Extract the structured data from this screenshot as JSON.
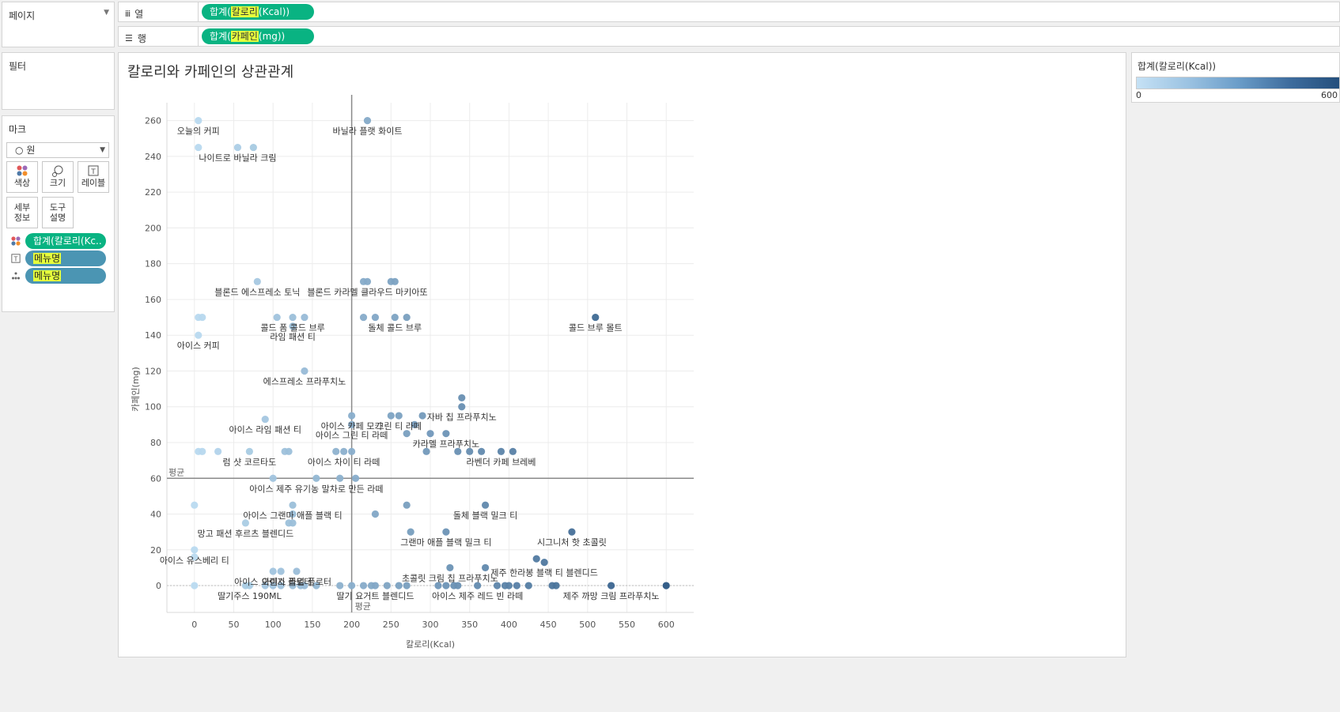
{
  "shelves": {
    "pages_label": "페이지",
    "columns_label": "열",
    "rows_label": "행",
    "columns_pill": {
      "pre": "합계(",
      "hl": "칼로리",
      "post": "(Kcal))"
    },
    "rows_pill": {
      "pre": "합계(",
      "hl": "카페인",
      "post": "(mg))"
    }
  },
  "filters": {
    "title": "필터"
  },
  "marks": {
    "title": "마크",
    "type_value": "원",
    "buttons": [
      {
        "label": "색상",
        "icon": "color-icon"
      },
      {
        "label": "크기",
        "icon": "size-icon"
      },
      {
        "label": "레이블",
        "icon": "label-icon"
      },
      {
        "label_line1": "세부",
        "label_line2": "정보",
        "icon": "detail-icon"
      },
      {
        "label_line1": "도구",
        "label_line2": "설명",
        "icon": "tooltip-icon"
      }
    ],
    "fields": [
      {
        "text": "합계(칼로리(Kc..",
        "icon": "color-icon",
        "style": "green"
      },
      {
        "text": "메뉴명",
        "icon": "label-icon",
        "style": "blue"
      },
      {
        "text": "메뉴명",
        "icon": "detail-icon",
        "style": "blue"
      }
    ]
  },
  "legend": {
    "title": "합계(칼로리(Kcal))",
    "min": "0",
    "max": "600"
  },
  "colors": {
    "green": "#09b382",
    "blue": "#4b95b3",
    "highlight": "#e6ff3c",
    "ref_line": "#8a8a8a"
  },
  "chart_data": {
    "type": "scatter",
    "title": "칼로리와 카페인의 상관관계",
    "xlabel": "칼로리(Kcal)",
    "ylabel": "카페인(mg)",
    "xlim": [
      -35,
      635
    ],
    "ylim": [
      -15,
      270
    ],
    "xticks": [
      0,
      50,
      100,
      150,
      200,
      250,
      300,
      350,
      400,
      450,
      500,
      550,
      600
    ],
    "yticks": [
      0,
      20,
      40,
      60,
      80,
      100,
      120,
      140,
      160,
      180,
      200,
      220,
      240,
      260
    ],
    "grid": true,
    "color_scale": {
      "min": 0,
      "max": 600,
      "from": "#b9daf0",
      "to": "#2a5683"
    },
    "reference_lines": [
      {
        "axis": "x",
        "value": 200,
        "label": "평균"
      },
      {
        "axis": "y",
        "value": 60,
        "label": "평균"
      }
    ],
    "points": [
      {
        "x": 5,
        "y": 260,
        "label": "오늘의 커피"
      },
      {
        "x": 5,
        "y": 245
      },
      {
        "x": 55,
        "y": 245,
        "label": "나이트로 바닐라 크림"
      },
      {
        "x": 75,
        "y": 245
      },
      {
        "x": 220,
        "y": 260,
        "label": "바닐라 플랫 화이트"
      },
      {
        "x": 80,
        "y": 170,
        "label": "블론드 에스프레소 토닉"
      },
      {
        "x": 215,
        "y": 170
      },
      {
        "x": 220,
        "y": 170,
        "label": "블론드 카라멜 클라우드 마키아또"
      },
      {
        "x": 250,
        "y": 170
      },
      {
        "x": 255,
        "y": 170
      },
      {
        "x": 5,
        "y": 150
      },
      {
        "x": 10,
        "y": 150
      },
      {
        "x": 105,
        "y": 150
      },
      {
        "x": 125,
        "y": 150,
        "label": "콜드 폼 콜드 브루"
      },
      {
        "x": 140,
        "y": 150
      },
      {
        "x": 125,
        "y": 145,
        "label": "라임 패션 티"
      },
      {
        "x": 215,
        "y": 150
      },
      {
        "x": 230,
        "y": 150
      },
      {
        "x": 255,
        "y": 150,
        "label": "돌체 콜드 브루"
      },
      {
        "x": 270,
        "y": 150
      },
      {
        "x": 510,
        "y": 150,
        "label": "콜드 브루 몰트"
      },
      {
        "x": 5,
        "y": 140,
        "label": "아이스 커피"
      },
      {
        "x": 140,
        "y": 120,
        "label": "에스프레소 프라푸치노"
      },
      {
        "x": 340,
        "y": 105
      },
      {
        "x": 340,
        "y": 100,
        "label": "자바 칩 프라푸치노"
      },
      {
        "x": 200,
        "y": 95,
        "label": "아이스 카페 모카"
      },
      {
        "x": 250,
        "y": 95
      },
      {
        "x": 260,
        "y": 95,
        "label": "그린 티 라떼"
      },
      {
        "x": 290,
        "y": 95
      },
      {
        "x": 90,
        "y": 93,
        "label": "아이스 라임 패션 티"
      },
      {
        "x": 280,
        "y": 90
      },
      {
        "x": 270,
        "y": 85
      },
      {
        "x": 300,
        "y": 85
      },
      {
        "x": 320,
        "y": 85,
        "label": "카라멜 프라푸치노"
      },
      {
        "x": 200,
        "y": 90,
        "label": "아이스 그린 티 라떼"
      },
      {
        "x": 5,
        "y": 75
      },
      {
        "x": 10,
        "y": 75
      },
      {
        "x": 30,
        "y": 75
      },
      {
        "x": 70,
        "y": 75,
        "label": "럼 샷 코르타도"
      },
      {
        "x": 115,
        "y": 75
      },
      {
        "x": 120,
        "y": 75
      },
      {
        "x": 180,
        "y": 75
      },
      {
        "x": 190,
        "y": 75,
        "label": "아이스 차이 티 라떼"
      },
      {
        "x": 200,
        "y": 75
      },
      {
        "x": 295,
        "y": 75
      },
      {
        "x": 335,
        "y": 75
      },
      {
        "x": 350,
        "y": 75
      },
      {
        "x": 365,
        "y": 75
      },
      {
        "x": 390,
        "y": 75,
        "label": "라벤더 카페 브레베"
      },
      {
        "x": 405,
        "y": 75
      },
      {
        "x": 100,
        "y": 60
      },
      {
        "x": 155,
        "y": 60,
        "label": "아이스 제주 유기농 말차로 만든 라떼"
      },
      {
        "x": 185,
        "y": 60
      },
      {
        "x": 205,
        "y": 60
      },
      {
        "x": 0,
        "y": 45
      },
      {
        "x": 125,
        "y": 45,
        "label": "아이스 그랜마 애플 블랙 티"
      },
      {
        "x": 270,
        "y": 45
      },
      {
        "x": 370,
        "y": 45,
        "label": "돌체 블랙 밀크 티"
      },
      {
        "x": 125,
        "y": 40
      },
      {
        "x": 230,
        "y": 40
      },
      {
        "x": 65,
        "y": 35,
        "label": "망고 패션 후르츠 블렌디드"
      },
      {
        "x": 120,
        "y": 35
      },
      {
        "x": 125,
        "y": 35
      },
      {
        "x": 275,
        "y": 30
      },
      {
        "x": 320,
        "y": 30,
        "label": "그랜마 애플 블랙 밀크 티"
      },
      {
        "x": 480,
        "y": 30,
        "label": "시그니처 핫 초콜릿"
      },
      {
        "x": 0,
        "y": 20,
        "label": "아이스 유스베리 티"
      },
      {
        "x": 0,
        "y": 16
      },
      {
        "x": 435,
        "y": 15
      },
      {
        "x": 445,
        "y": 13,
        "label": "제주 한라봉 블랙 티 블렌디드"
      },
      {
        "x": 325,
        "y": 10,
        "label": "초콜릿 크림 칩 프라푸치노"
      },
      {
        "x": 370,
        "y": 10
      },
      {
        "x": 100,
        "y": 8,
        "label": "아이스 오렌지 플로터"
      },
      {
        "x": 110,
        "y": 8
      },
      {
        "x": 130,
        "y": 8,
        "label": "아이스 라임 플로터"
      },
      {
        "x": 0,
        "y": 0
      },
      {
        "x": 65,
        "y": 0
      },
      {
        "x": 70,
        "y": 0,
        "label": "딸기주스 190ML"
      },
      {
        "x": 90,
        "y": 0
      },
      {
        "x": 100,
        "y": 0
      },
      {
        "x": 110,
        "y": 0
      },
      {
        "x": 125,
        "y": 0
      },
      {
        "x": 135,
        "y": 0
      },
      {
        "x": 140,
        "y": 0
      },
      {
        "x": 155,
        "y": 0
      },
      {
        "x": 185,
        "y": 0
      },
      {
        "x": 200,
        "y": 0
      },
      {
        "x": 215,
        "y": 0
      },
      {
        "x": 225,
        "y": 0
      },
      {
        "x": 230,
        "y": 0,
        "label": "딸기 요거트 블렌디드"
      },
      {
        "x": 245,
        "y": 0
      },
      {
        "x": 260,
        "y": 0
      },
      {
        "x": 270,
        "y": 0
      },
      {
        "x": 310,
        "y": 0
      },
      {
        "x": 320,
        "y": 0
      },
      {
        "x": 330,
        "y": 0
      },
      {
        "x": 335,
        "y": 0
      },
      {
        "x": 360,
        "y": 0,
        "label": "아이스 제주 레드 빈 라떼"
      },
      {
        "x": 385,
        "y": 0
      },
      {
        "x": 395,
        "y": 0
      },
      {
        "x": 400,
        "y": 0
      },
      {
        "x": 410,
        "y": 0
      },
      {
        "x": 425,
        "y": 0
      },
      {
        "x": 455,
        "y": 0
      },
      {
        "x": 460,
        "y": 0
      },
      {
        "x": 530,
        "y": 0,
        "label": "제주 까망 크림 프라푸치노"
      },
      {
        "x": 600,
        "y": 0
      }
    ]
  }
}
